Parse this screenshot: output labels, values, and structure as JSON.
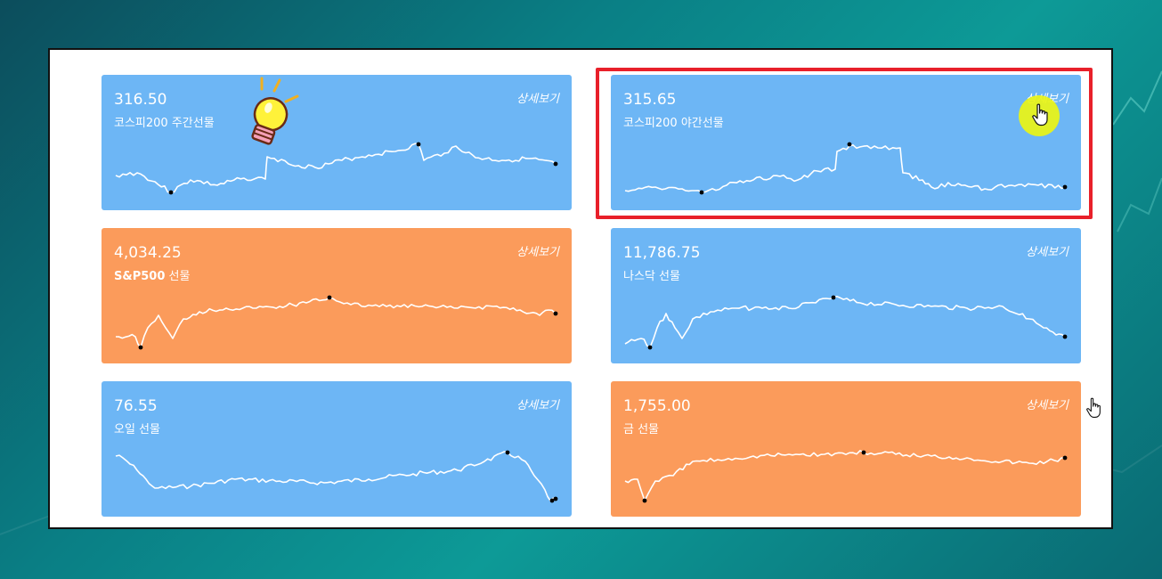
{
  "cards": [
    {
      "value": "316.50",
      "name_bold": "",
      "name": "코스피200 주간선물",
      "detail": "상세보기",
      "color": "blue"
    },
    {
      "value": "315.65",
      "name_bold": "",
      "name": "코스피200 야간선물",
      "detail": "상세보기",
      "color": "blue"
    },
    {
      "value": "4,034.25",
      "name_bold": "S&P500",
      "name": " 선물",
      "detail": "상세보기",
      "color": "orange"
    },
    {
      "value": "11,786.75",
      "name_bold": "",
      "name": "나스닥 선물",
      "detail": "상세보기",
      "color": "blue"
    },
    {
      "value": "76.55",
      "name_bold": "",
      "name": "오일 선물",
      "detail": "상세보기",
      "color": "blue"
    },
    {
      "value": "1,755.00",
      "name_bold": "",
      "name": "금 선물",
      "detail": "상세보기",
      "color": "orange"
    }
  ],
  "colors": {
    "blue": "#6db6f5",
    "orange": "#fb9b5b",
    "highlight": "#e8202a"
  },
  "icons": [
    "lightbulb-icon",
    "pointer-hand-icon"
  ]
}
